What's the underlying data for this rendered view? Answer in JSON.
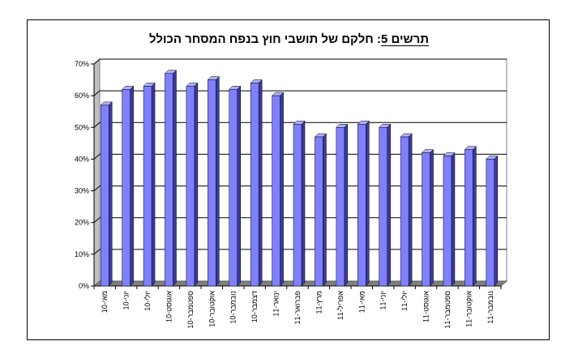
{
  "chart_data": {
    "type": "bar",
    "title_underlined": "תרשים 5",
    "title_rest": ": חלקם של תושבי חוץ בנפח המסחר הכולל",
    "categories": [
      "מאי-10",
      "יוני-10",
      "יולי-10",
      "אוגוסט-10",
      "ספטמבר-10",
      "אוקטובר-10",
      "נובמבר-10",
      "דצמבר-10",
      "ינואר-11",
      "פברואר-11",
      "מרץ-11",
      "אפריל-11",
      "מאי-11",
      "יוני-11",
      "יולי-11",
      "אוגוסט-11",
      "ספטמבר-11",
      "אוקטובר-11",
      "נובמבר-11"
    ],
    "values": [
      57,
      62,
      63,
      67,
      63,
      65,
      62,
      64,
      60,
      51,
      47,
      50,
      51,
      50,
      47,
      42,
      41,
      43,
      40
    ],
    "y_ticks": [
      "0%",
      "10%",
      "20%",
      "30%",
      "40%",
      "50%",
      "60%",
      "70%"
    ],
    "ylim": [
      0,
      70
    ],
    "grid": true,
    "bar_color": "#8080ff"
  }
}
